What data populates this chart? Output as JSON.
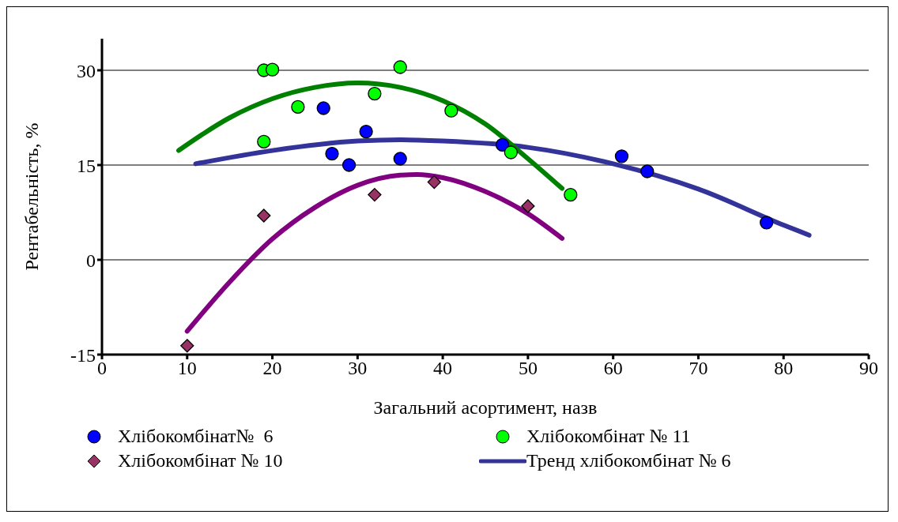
{
  "chart_data": {
    "type": "scatter",
    "xlabel": "Загальний асортимент, назв",
    "ylabel": "Рентабельність, %",
    "xlim": [
      0,
      90
    ],
    "xticks": [
      0,
      10,
      20,
      30,
      40,
      50,
      60,
      70,
      80,
      90
    ],
    "ylim": [
      -15,
      35
    ],
    "yticks": [
      -15,
      0,
      15,
      30
    ],
    "grid": "y",
    "legend": "bottom",
    "series": [
      {
        "name": "Хлібокомбінат№  6",
        "marker": "circle",
        "color": "#0000ff",
        "x": [
          26,
          27,
          29,
          31,
          35,
          47,
          61,
          64,
          78
        ],
        "values": [
          24,
          16.8,
          15,
          20.3,
          16,
          18.2,
          16.4,
          14,
          5.9
        ]
      },
      {
        "name": "Хлібокомбінат № 11",
        "marker": "circle",
        "color": "#00ff00",
        "x": [
          19,
          20,
          23,
          19,
          32,
          35,
          41,
          48,
          55
        ],
        "values": [
          30,
          30.1,
          24.2,
          18.7,
          26.3,
          30.5,
          23.6,
          17,
          10.3
        ]
      },
      {
        "name": "Хлібокомбінат № 10",
        "marker": "diamond",
        "color": "#993366",
        "x": [
          10,
          19,
          32,
          39,
          50
        ],
        "values": [
          -13.6,
          7,
          10.3,
          12.3,
          8.5
        ]
      },
      {
        "name": "Тренд хлібокомбінат № 6",
        "type": "line",
        "marker": "none",
        "color": "#333399",
        "x": [
          11,
          20,
          30,
          35,
          40,
          50,
          60,
          70,
          80,
          83
        ],
        "values": [
          15.2,
          17.3,
          18.8,
          19,
          18.8,
          17.8,
          15.2,
          11.2,
          5.5,
          3.9
        ]
      },
      {
        "type": "line",
        "marker": "none",
        "color": "#008000",
        "x": [
          9,
          15,
          20,
          25,
          30,
          35,
          40,
          45,
          50,
          54
        ],
        "values": [
          17.3,
          22.5,
          25.5,
          27.3,
          28,
          27.3,
          25.2,
          21.5,
          16,
          11.3
        ]
      },
      {
        "type": "line",
        "marker": "none",
        "color": "#800080",
        "x": [
          10,
          15,
          20,
          25,
          30,
          35,
          37,
          40,
          45,
          50,
          54
        ],
        "values": [
          -11.3,
          -3.5,
          3.3,
          8.3,
          11.8,
          13.4,
          13.5,
          13,
          10.8,
          7.3,
          3.4
        ]
      }
    ]
  }
}
